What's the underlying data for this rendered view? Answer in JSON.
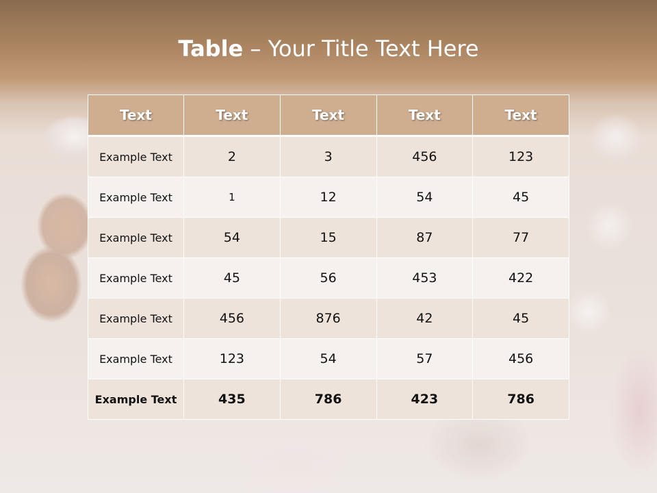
{
  "title": {
    "bold": "Table",
    "rest": " – Your Title Text Here"
  },
  "table": {
    "headers": [
      "Text",
      "Text",
      "Text",
      "Text",
      "Text"
    ],
    "rows": [
      [
        "Example Text",
        "2",
        "3",
        "456",
        "123"
      ],
      [
        "Example Text",
        "1",
        "12",
        "54",
        "45"
      ],
      [
        "Example Text",
        "54",
        "15",
        "87",
        "77"
      ],
      [
        "Example Text",
        "45",
        "56",
        "453",
        "422"
      ],
      [
        "Example Text",
        "456",
        "876",
        "42",
        "45"
      ],
      [
        "Example Text",
        "123",
        "54",
        "57",
        "456"
      ],
      [
        "Example Text",
        "435",
        "786",
        "423",
        "786"
      ]
    ]
  },
  "colors": {
    "header": "#cfae90",
    "row_dark": "#eee3db",
    "row_light": "#f6f1ee",
    "top_band": "#a8825f"
  }
}
